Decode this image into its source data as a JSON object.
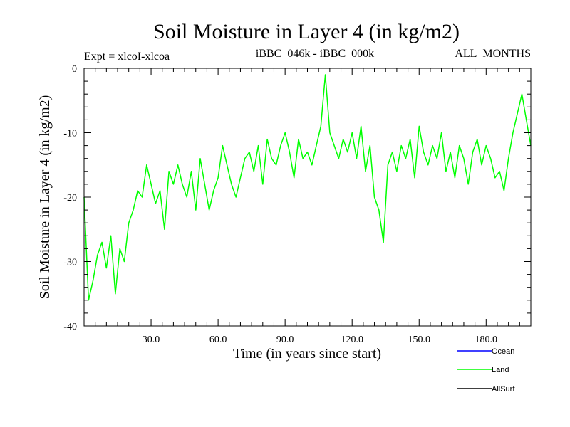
{
  "chart_data": {
    "type": "line",
    "title": "Soil Moisture in Layer 4 (in kg/m2)",
    "subtitle_left": "Expt = xlcoI-xlcoa",
    "subtitle_center": "iBBC_046k - iBBC_000k",
    "subtitle_right": "ALL_MONTHS",
    "xlabel": "Time (in years since start)",
    "ylabel": "Soil Moisture in Layer 4 (in kg/m2)",
    "xlim": [
      0,
      200
    ],
    "ylim": [
      -40,
      0
    ],
    "x_ticks": [
      30,
      60,
      90,
      120,
      150,
      180
    ],
    "x_tick_labels": [
      "30.0",
      "60.0",
      "90.0",
      "120.0",
      "150.0",
      "180.0"
    ],
    "y_ticks": [
      -40,
      -30,
      -20,
      -10,
      0
    ],
    "y_tick_labels": [
      "-40",
      "-30",
      "-20",
      "-10",
      "0"
    ],
    "legend": [
      {
        "name": "Ocean",
        "color": "#0000ff"
      },
      {
        "name": "Land",
        "color": "#00ff00"
      },
      {
        "name": "AllSurf",
        "color": "#000000"
      }
    ],
    "series": [
      {
        "name": "Land",
        "color": "#00ff00",
        "x": [
          0,
          2,
          4,
          6,
          8,
          10,
          12,
          14,
          16,
          18,
          20,
          22,
          24,
          26,
          28,
          30,
          32,
          34,
          36,
          38,
          40,
          42,
          44,
          46,
          48,
          50,
          52,
          54,
          56,
          58,
          60,
          62,
          64,
          66,
          68,
          70,
          72,
          74,
          76,
          78,
          80,
          82,
          84,
          86,
          88,
          90,
          92,
          94,
          96,
          98,
          100,
          102,
          104,
          106,
          108,
          110,
          112,
          114,
          116,
          118,
          120,
          122,
          124,
          126,
          128,
          130,
          132,
          134,
          136,
          138,
          140,
          142,
          144,
          146,
          148,
          150,
          152,
          154,
          156,
          158,
          160,
          162,
          164,
          166,
          168,
          170,
          172,
          174,
          176,
          178,
          180,
          182,
          184,
          186,
          188,
          190,
          192,
          194,
          196,
          198,
          200
        ],
        "values": [
          -20,
          -36,
          -33,
          -29,
          -27,
          -31,
          -26,
          -35,
          -28,
          -30,
          -24,
          -22,
          -19,
          -20,
          -15,
          -18,
          -21,
          -19,
          -25,
          -16,
          -18,
          -15,
          -18,
          -20,
          -16,
          -22,
          -14,
          -18,
          -22,
          -19,
          -17,
          -12,
          -15,
          -18,
          -20,
          -17,
          -14,
          -13,
          -16,
          -12,
          -18,
          -11,
          -14,
          -15,
          -12,
          -10,
          -13,
          -17,
          -11,
          -14,
          -13,
          -15,
          -12,
          -9,
          -1,
          -10,
          -12,
          -14,
          -11,
          -13,
          -10,
          -14,
          -9,
          -16,
          -12,
          -20,
          -22,
          -27,
          -15,
          -13,
          -16,
          -12,
          -14,
          -11,
          -17,
          -9,
          -13,
          -15,
          -12,
          -14,
          -10,
          -16,
          -13,
          -17,
          -12,
          -14,
          -18,
          -13,
          -11,
          -15,
          -12,
          -14,
          -17,
          -16,
          -19,
          -14,
          -10,
          -7,
          -4,
          -8,
          -12
        ]
      }
    ]
  }
}
